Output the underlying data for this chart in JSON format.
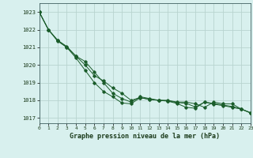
{
  "title": "Graphe pression niveau de la mer (hPa)",
  "bg_color": "#d8f0ee",
  "grid_color": "#b8d4d0",
  "line_color": "#1a5c2a",
  "x_labels": [
    "0",
    "1",
    "2",
    "3",
    "4",
    "5",
    "6",
    "7",
    "8",
    "9",
    "10",
    "11",
    "12",
    "13",
    "14",
    "15",
    "16",
    "17",
    "18",
    "19",
    "20",
    "21",
    "22",
    "23"
  ],
  "y_ticks": [
    1017,
    1018,
    1019,
    1020,
    1021,
    1022,
    1023
  ],
  "series": [
    [
      1023.0,
      1022.0,
      1021.4,
      1021.0,
      1020.5,
      1020.2,
      1019.6,
      1019.0,
      1018.4,
      1018.1,
      1017.9,
      1018.2,
      1018.1,
      1018.0,
      1018.0,
      1017.9,
      1017.9,
      1017.8,
      1017.6,
      1017.9,
      1017.8,
      1017.8,
      1017.5,
      1017.3
    ],
    [
      1023.0,
      1022.0,
      1021.4,
      1021.05,
      1020.5,
      1020.0,
      1019.4,
      1019.1,
      1018.7,
      1018.4,
      1018.0,
      1018.15,
      1018.05,
      1018.0,
      1017.97,
      1017.87,
      1017.83,
      1017.62,
      1017.9,
      1017.82,
      1017.73,
      1017.65,
      1017.51,
      1017.29
    ],
    [
      1023.0,
      1022.0,
      1021.35,
      1021.0,
      1020.4,
      1019.7,
      1019.0,
      1018.5,
      1018.2,
      1017.85,
      1017.8,
      1018.15,
      1018.05,
      1018.0,
      1017.95,
      1017.82,
      1017.6,
      1017.55,
      1017.9,
      1017.78,
      1017.7,
      1017.6,
      1017.5,
      1017.28
    ]
  ],
  "ylim": [
    1016.7,
    1023.5
  ],
  "xlim": [
    0,
    23
  ],
  "figsize": [
    3.2,
    2.0
  ],
  "dpi": 100
}
